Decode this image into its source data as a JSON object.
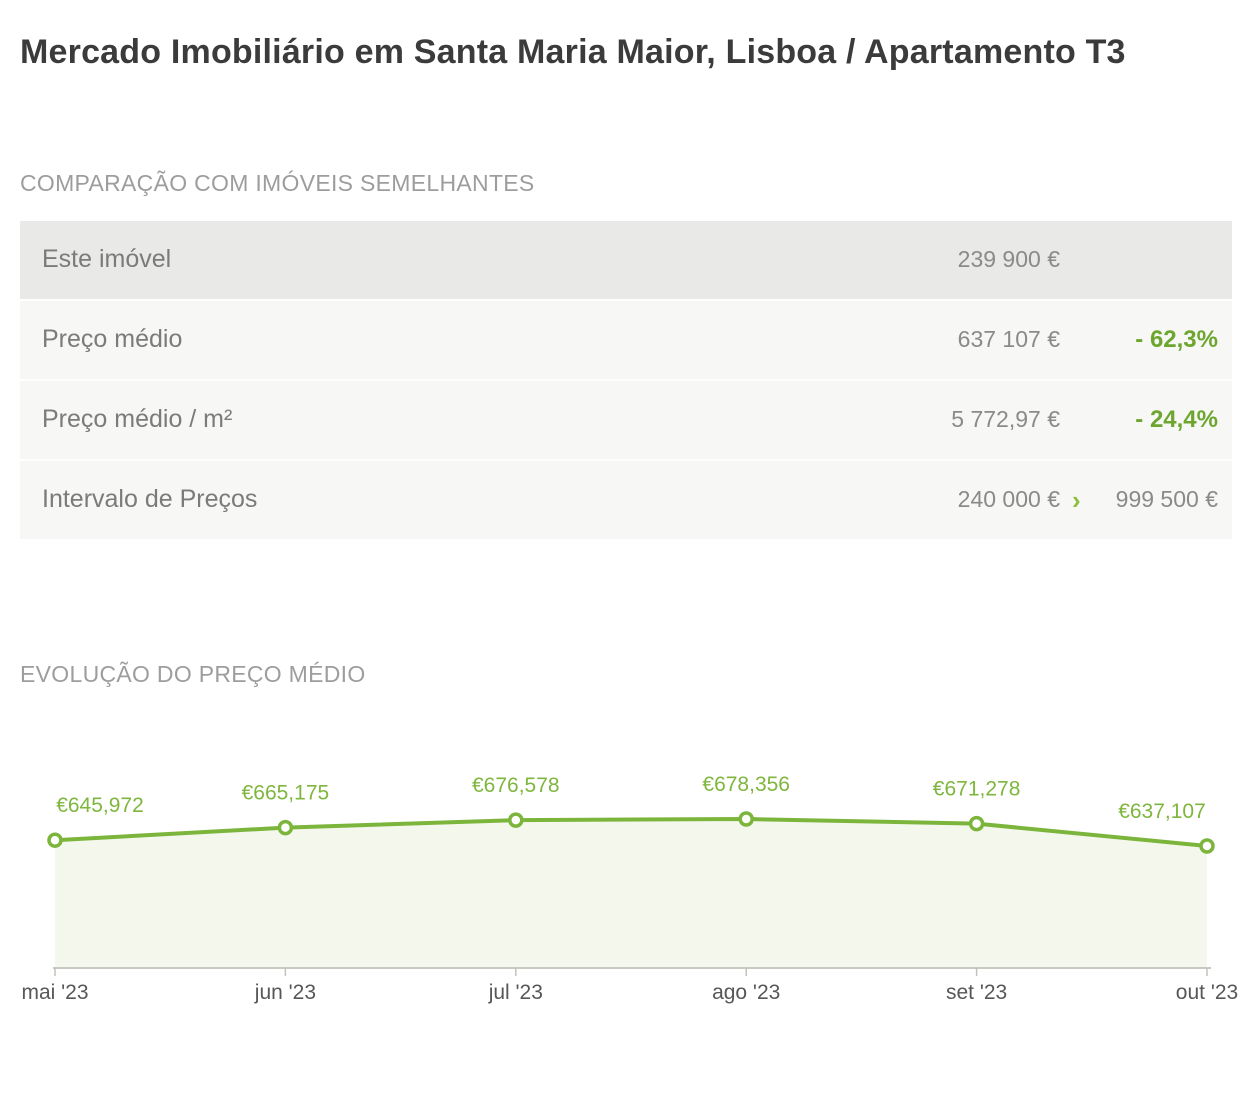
{
  "page": {
    "title": "Mercado Imobiliário em Santa Maria Maior, Lisboa / Apartamento T3"
  },
  "comparison": {
    "heading": "COMPARAÇÃO COM IMÓVEIS SEMELHANTES",
    "rows": [
      {
        "label": "Este imóvel",
        "value": "239 900 €",
        "percent": ""
      },
      {
        "label": "Preço médio",
        "value": "637 107 €",
        "percent": "- 62,3%"
      },
      {
        "label": "Preço médio / m²",
        "value": "5 772,97 €",
        "percent": "- 24,4%"
      },
      {
        "label": "Intervalo de Preços",
        "range_from": "240 000 €",
        "range_sep": "›",
        "range_to": "999 500 €"
      }
    ]
  },
  "evolution": {
    "heading": "EVOLUÇÃO DO PREÇO MÉDIO"
  },
  "chart_data": {
    "type": "area",
    "title": "EVOLUÇÃO DO PREÇO MÉDIO",
    "x": [
      "mai '23",
      "jun '23",
      "jul '23",
      "ago '23",
      "set '23",
      "out '23"
    ],
    "values": [
      645972,
      665175,
      676578,
      678356,
      671278,
      637107
    ],
    "labels": [
      "€645,972",
      "€665,175",
      "€676,578",
      "€678,356",
      "€671,278",
      "€637,107"
    ],
    "currency": "EUR",
    "xlabel": "",
    "ylabel": "",
    "grid": false,
    "legend": false,
    "markers": true,
    "line_color": "#7cb53c",
    "fill_color": "#f4f8ec",
    "label_color": "#7fb63e",
    "axis_color": "#c9c9c3",
    "tick_color": "#c2c2bc",
    "x_label_color": "#57575a"
  },
  "colors": {
    "accent_green": "#6ca62e",
    "row_highlight_bg": "#e9e9e7",
    "row_bg": "#f7f7f5",
    "title_text": "#3b3b3b",
    "heading_text": "#9d9d9d",
    "label_text": "#7b7b7b",
    "value_text": "#8a8a8a"
  }
}
